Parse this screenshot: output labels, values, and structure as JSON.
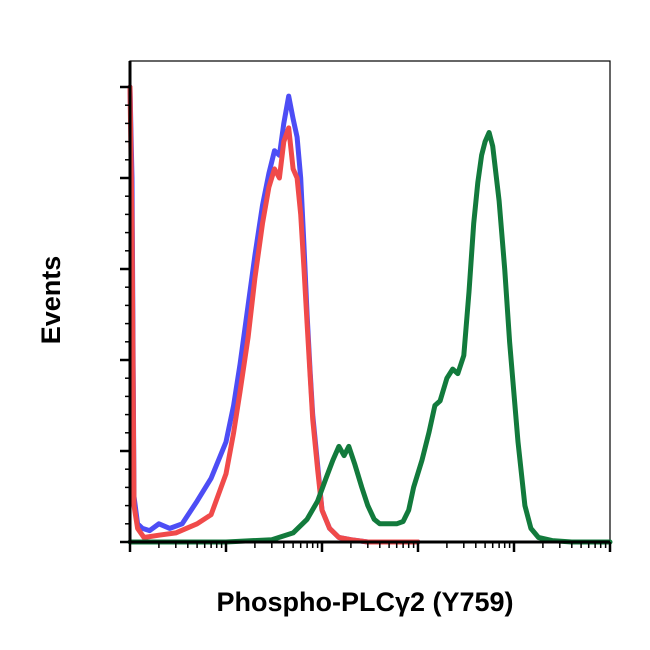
{
  "chart_data": {
    "type": "line",
    "title": "",
    "xlabel": "Phospho-PLCγ2 (Y759)",
    "ylabel": "Events",
    "x_scale": "log",
    "xlim": [
      1,
      100000
    ],
    "ylim": [
      0,
      100
    ],
    "grid": false,
    "legend": "none",
    "series": [
      {
        "color": "#4d4df5",
        "x": [
          1,
          1.05,
          1.1,
          1.2,
          1.35,
          1.6,
          2,
          2.6,
          3.5,
          5,
          7,
          10,
          12,
          14,
          17,
          20,
          24,
          28,
          32,
          36,
          40,
          45,
          50,
          55,
          60,
          65,
          70,
          75,
          80,
          90,
          100,
          120,
          150,
          200,
          300,
          1000
        ],
        "y": [
          100,
          80,
          10,
          4,
          3,
          2.5,
          4,
          3,
          4,
          9,
          14,
          22,
          30,
          39,
          52,
          63,
          74,
          81,
          86,
          85,
          92,
          98,
          93,
          89,
          80,
          65,
          50,
          38,
          28,
          17,
          7,
          3,
          1,
          0.5,
          0,
          0
        ]
      },
      {
        "color": "#f04a4a",
        "x": [
          1,
          1.05,
          1.1,
          1.2,
          1.4,
          2,
          3,
          5,
          7,
          10,
          12,
          14,
          17,
          20,
          24,
          28,
          32,
          36,
          40,
          45,
          50,
          55,
          60,
          65,
          70,
          75,
          80,
          90,
          100,
          120,
          150,
          200,
          300,
          1000
        ],
        "y": [
          100,
          70,
          8,
          3,
          1,
          1.5,
          2,
          4,
          6,
          15,
          24,
          33,
          45,
          58,
          70,
          78,
          82,
          80,
          88,
          91,
          82,
          80,
          72,
          60,
          48,
          37,
          27,
          16,
          7,
          3,
          1,
          0.5,
          0,
          0
        ]
      },
      {
        "color": "#127a3c",
        "x": [
          1,
          10,
          30,
          50,
          70,
          90,
          110,
          130,
          150,
          170,
          190,
          220,
          260,
          300,
          350,
          400,
          500,
          600,
          700,
          800,
          900,
          1100,
          1300,
          1500,
          1700,
          2000,
          2300,
          2600,
          3000,
          3400,
          3800,
          4200,
          4600,
          5000,
          5500,
          6000,
          7000,
          8000,
          9000,
          11000,
          13000,
          15000,
          18000,
          25000,
          40000,
          100000
        ],
        "y": [
          0,
          0,
          0.5,
          2,
          5,
          9,
          14,
          18,
          21,
          19,
          21,
          17,
          12,
          8,
          5,
          4,
          4,
          4,
          4.5,
          7,
          12,
          18,
          24,
          30,
          31,
          36,
          38,
          37,
          41,
          55,
          70,
          79,
          85,
          88,
          90,
          87,
          75,
          60,
          44,
          22,
          8,
          3,
          1,
          0.3,
          0,
          0
        ]
      }
    ]
  }
}
